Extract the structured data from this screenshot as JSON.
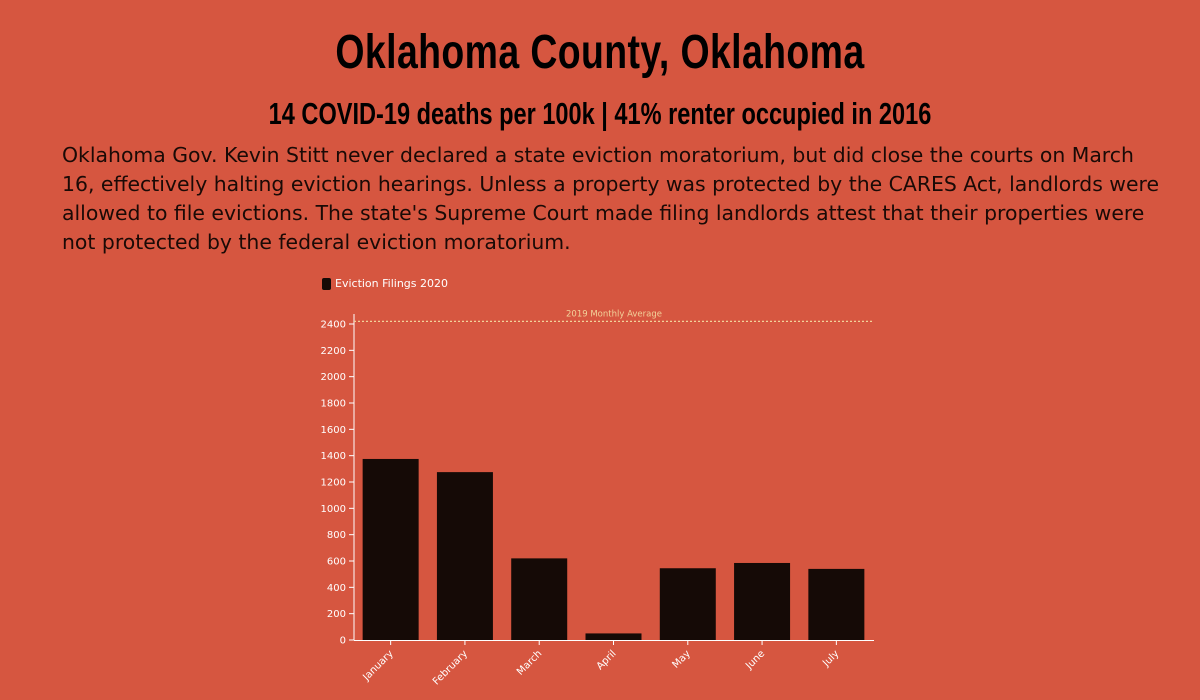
{
  "header": {
    "title": "Oklahoma County, Oklahoma",
    "subtitle": "14 COVID-19 deaths per 100k | 41% renter occupied in 2016"
  },
  "description": "Oklahoma Gov. Kevin Stitt never declared a state eviction moratorium, but did close the courts on March 16, effectively halting eviction hearings. Unless a property was protected by the CARES Act, landlords were allowed to file evictions. The state's Supreme Court made filing landlords attest that their properties were not protected by the federal eviction moratorium.",
  "colors": {
    "background": "#d65640",
    "bar": "#150a06",
    "reference_line": "#f2d29a",
    "axis": "#ffffff"
  },
  "chart_data": {
    "type": "bar",
    "categories": [
      "January",
      "February",
      "March",
      "April",
      "May",
      "June",
      "July"
    ],
    "series": [
      {
        "name": "Eviction Filings 2020",
        "values": [
          1375,
          1275,
          620,
          50,
          545,
          585,
          540
        ]
      }
    ],
    "reference_line": {
      "label": "2019 Monthly Average",
      "value": 2420
    },
    "yticks": [
      0,
      200,
      400,
      600,
      800,
      1000,
      1200,
      1400,
      1600,
      1800,
      2000,
      2200,
      2400
    ],
    "ylim": [
      0,
      2500
    ],
    "grid": false,
    "legend_position": "top-left"
  }
}
